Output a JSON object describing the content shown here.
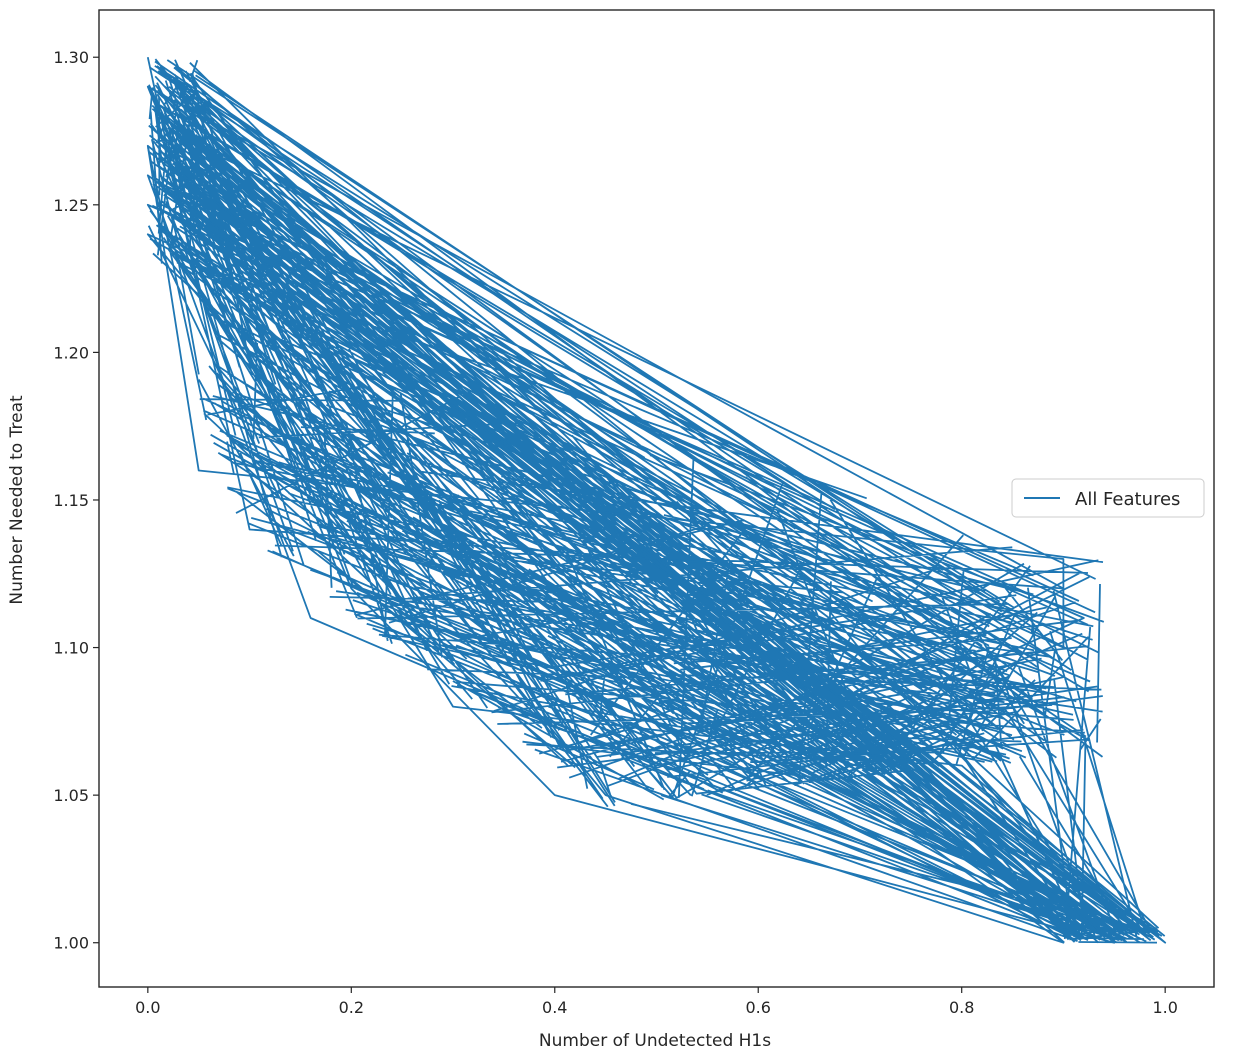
{
  "chart_data": {
    "type": "line",
    "xlabel": "Number of Undetected H1s",
    "ylabel": "Number Needed to Treat",
    "xlim": [
      -0.048,
      1.048
    ],
    "ylim": [
      0.985,
      1.316
    ],
    "x_ticks": [
      0.0,
      0.2,
      0.4,
      0.6,
      0.8,
      1.0
    ],
    "x_tick_labels": [
      "0.0",
      "0.2",
      "0.4",
      "0.6",
      "0.8",
      "1.0"
    ],
    "y_ticks": [
      1.0,
      1.05,
      1.1,
      1.15,
      1.2,
      1.25,
      1.3
    ],
    "y_tick_labels": [
      "1.00",
      "1.05",
      "1.10",
      "1.15",
      "1.20",
      "1.25",
      "1.30"
    ],
    "grid": false,
    "legend_position": "center-right",
    "series": [
      {
        "name": "All Features",
        "color": "#1f77b4",
        "x": [
          0.0,
          0.1,
          0.9,
          0.0,
          0.2,
          0.4,
          0.95,
          0.0,
          0.05,
          0.9,
          0.9,
          0.0,
          0.45,
          0.9,
          0.1,
          0.6,
          0.92,
          0.0,
          0.3,
          0.8,
          1.0,
          0.0,
          0.16,
          0.5,
          0.9
        ],
        "y": [
          1.3,
          1.14,
          1.12,
          1.29,
          1.12,
          1.05,
          1.0,
          1.27,
          1.16,
          1.13,
          1.1,
          1.24,
          1.05,
          1.0,
          1.2,
          1.06,
          1.11,
          1.25,
          1.08,
          1.06,
          1.0,
          1.26,
          1.11,
          1.06,
          1.09
        ]
      }
    ]
  }
}
